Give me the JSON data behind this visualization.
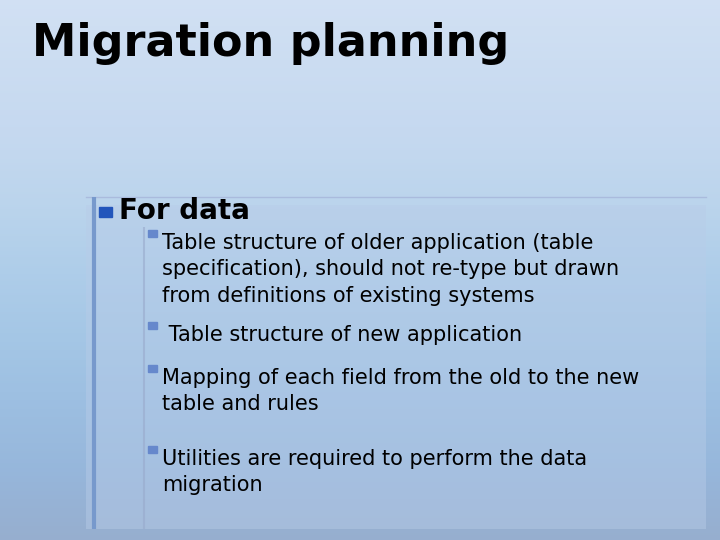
{
  "title": "Migration planning",
  "title_fontsize": 32,
  "title_weight": "bold",
  "title_color": "#000000",
  "bg_color": "#c5d8f0",
  "content_box_color": "#c8dcf5",
  "bullet1_text": "For data",
  "bullet1_color": "#2255bb",
  "bullet1_fontsize": 20,
  "bullet1_weight": "bold",
  "bullet2_color": "#6688cc",
  "bullet2_fontsize": 15,
  "text_color": "#000000",
  "sub_bullets": [
    "Table structure of older application (table\nspecification), should not re-type but drawn\nfrom definitions of existing systems",
    " Table structure of new application",
    "Mapping of each field from the old to the new\ntable and rules",
    "Utilities are required to perform the data\nmigration"
  ],
  "divider_color": "#aabbdd",
  "left_bar_color": "#7799cc",
  "secondary_bar_color": "#99aacc"
}
